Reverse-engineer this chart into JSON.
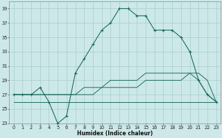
{
  "xlabel": "Humidex (Indice chaleur)",
  "background_color": "#cce8e8",
  "grid_color": "#a8cccc",
  "line_color": "#1a6b5a",
  "hours": [
    0,
    1,
    2,
    3,
    4,
    5,
    6,
    7,
    8,
    9,
    10,
    11,
    12,
    13,
    14,
    15,
    16,
    17,
    18,
    19,
    20,
    21,
    22,
    23
  ],
  "series_main": [
    27,
    27,
    27,
    28,
    26,
    23,
    24,
    30,
    32,
    34,
    36,
    37,
    39,
    39,
    38,
    38,
    36,
    36,
    36,
    35,
    33,
    29,
    27,
    26
  ],
  "series_line2": [
    27,
    27,
    27,
    27,
    27,
    27,
    27,
    27,
    28,
    28,
    28,
    29,
    29,
    29,
    29,
    30,
    30,
    30,
    30,
    30,
    30,
    30,
    29,
    26
  ],
  "series_line3": [
    27,
    27,
    27,
    27,
    27,
    27,
    27,
    27,
    27,
    27,
    28,
    28,
    28,
    28,
    28,
    29,
    29,
    29,
    29,
    29,
    30,
    29,
    27,
    26
  ],
  "series_line4": [
    26,
    26,
    26,
    26,
    26,
    26,
    26,
    26,
    26,
    26,
    26,
    26,
    26,
    26,
    26,
    26,
    26,
    26,
    26,
    26,
    26,
    26,
    26,
    26
  ],
  "ylim": [
    23,
    40
  ],
  "yticks": [
    23,
    25,
    27,
    29,
    31,
    33,
    35,
    37,
    39
  ],
  "xticks": [
    0,
    1,
    2,
    3,
    4,
    5,
    6,
    7,
    8,
    9,
    10,
    11,
    12,
    13,
    14,
    15,
    16,
    17,
    18,
    19,
    20,
    21,
    22,
    23
  ],
  "xlabel_fontsize": 5.5,
  "tick_fontsize": 4.8
}
